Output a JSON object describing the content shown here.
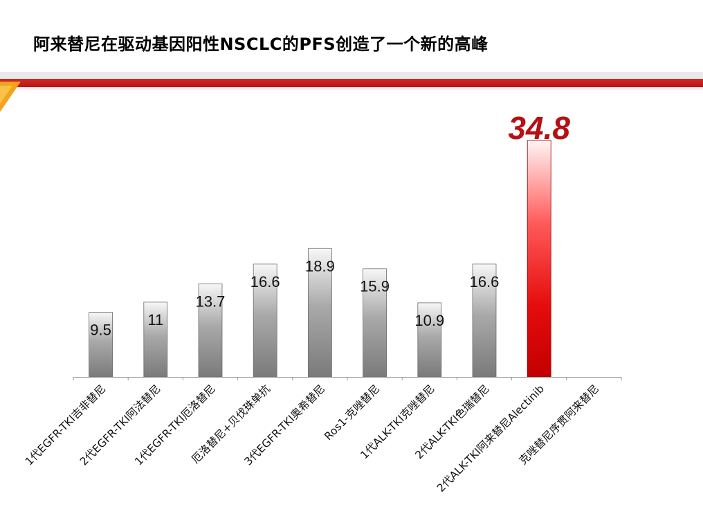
{
  "slide": {
    "title": "阿来替尼在驱动基因阳性NSCLC的PFS创造了一个新的高峰"
  },
  "colors": {
    "accent_red": "#c0161b",
    "highlight_text": "#b71014",
    "bar_gray_dark": "#7d7d7d",
    "bar_gray_light": "#f7f7f7"
  },
  "chart_data": {
    "type": "bar",
    "title": "",
    "xlabel": "",
    "ylabel": "",
    "ylim": [
      0,
      37
    ],
    "grid": false,
    "legend": "none",
    "categories": [
      "1代EGFR-TKI吉非替尼",
      "2代EGFR-TKI阿法替尼",
      "1代EGFR-TKI厄洛替尼",
      "厄洛替尼+贝伐珠单抗",
      "3代EGFR-TKI奥希替尼",
      "Ros1-克唑替尼",
      "1代ALK-TKI克唑替尼",
      "2代ALK-TKI色瑞替尼",
      "2代ALK-TKI阿来替尼Alectinib",
      "克唑替尼序贯阿来替尼"
    ],
    "values": [
      9.5,
      11,
      13.7,
      16.6,
      18.9,
      15.9,
      10.9,
      16.6,
      34.8,
      null
    ],
    "value_labels": [
      "9.5",
      "11",
      "13.7",
      "16.6",
      "18.9",
      "15.9",
      "10.9",
      "16.6",
      "34.8",
      ""
    ],
    "highlight_index": 8
  }
}
